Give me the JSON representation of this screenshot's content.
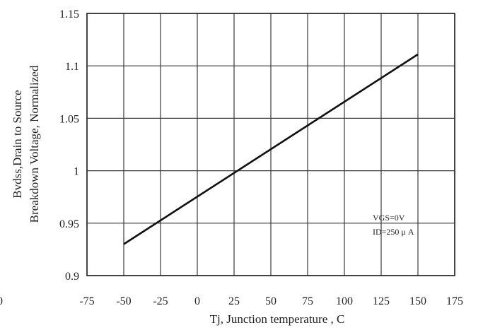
{
  "chart_data": {
    "type": "line",
    "xlabel": "Tj, Junction temperature , C",
    "ylabel_line1": "Bvdss,Drain to Source",
    "ylabel_line2": "Breakdown Voltage, Normalized",
    "xlim": [
      -75,
      175
    ],
    "ylim": [
      0.9,
      1.15
    ],
    "x_ticks": [
      "-75",
      "-50",
      "-25",
      "0",
      "25",
      "50",
      "75",
      "100",
      "125",
      "150",
      "175"
    ],
    "y_ticks": [
      "0.9",
      "0.95",
      "1",
      "1.05",
      "1.1",
      "1.15"
    ],
    "grid": true,
    "series": [
      {
        "x": [
          -50,
          150
        ],
        "y": [
          0.93,
          1.111
        ]
      }
    ],
    "annotation": {
      "line1": "VGS=0V",
      "line2": "ID=250 μ A",
      "placement": "lower-right"
    },
    "stray_left_label": "0"
  }
}
